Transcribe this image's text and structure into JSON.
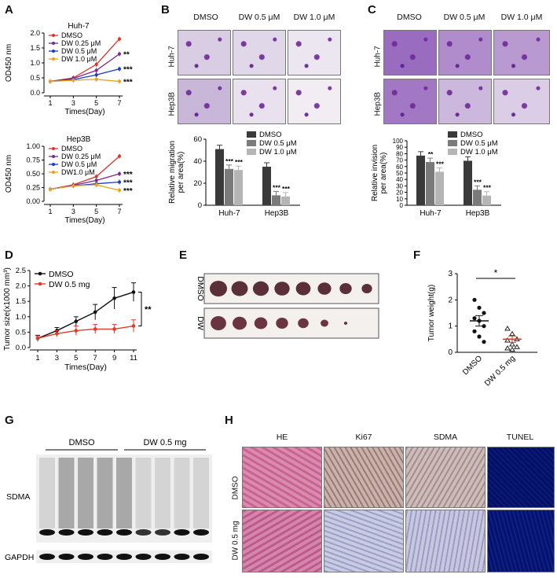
{
  "panels": {
    "A": {
      "label": "A",
      "top": {
        "title": "Huh-7",
        "ylabel": "OD450 nm",
        "xlabel": "Times(Day)"
      },
      "bottom": {
        "title": "Hep3B",
        "ylabel": "OD450 nm",
        "xlabel": "Times(Day)"
      }
    },
    "B": {
      "label": "B",
      "columns": [
        "DMSO",
        "DW 0.5 μM",
        "DW 1.0 μM"
      ],
      "rows": [
        "Huh-7",
        "Hep3B"
      ],
      "ylabel": "Relative migration per area(%)"
    },
    "C": {
      "label": "C",
      "columns": [
        "DMSO",
        "DW 0.5 μM",
        "DW 1.0 μM"
      ],
      "rows": [
        "Huh-7",
        "Hep3B"
      ],
      "ylabel": "Relative invision per area(%)"
    },
    "D": {
      "label": "D",
      "ylabel": "Tumor size(x1000 mm³)",
      "xlabel": "Times(Day)",
      "sig": "**"
    },
    "E": {
      "label": "E",
      "rows": [
        "DMSO",
        "DW"
      ],
      "tumor_sizes": {
        "DMSO": [
          1.0,
          0.95,
          0.92,
          0.88,
          0.85,
          0.78,
          0.7,
          0.6
        ],
        "DW": [
          0.9,
          0.82,
          0.75,
          0.7,
          0.62,
          0.45,
          0.2
        ]
      }
    },
    "F": {
      "label": "F",
      "ylabel": "Tumor weight(g)",
      "categories": [
        "DMSO",
        "DW 0.5 mg"
      ],
      "sig": "*"
    },
    "G": {
      "label": "G",
      "groups": [
        "DMSO",
        "DW 0.5 mg"
      ],
      "rows": [
        "SDMA",
        "GAPDH"
      ]
    },
    "H": {
      "label": "H",
      "columns": [
        "HE",
        "Ki67",
        "SDMA",
        "TUNEL"
      ],
      "rows": [
        "DMSO",
        "DW 0.5 mg"
      ]
    }
  },
  "chart_data": [
    {
      "type": "line",
      "id": "A-top",
      "title": "Huh-7",
      "x": [
        1,
        3,
        5,
        7
      ],
      "xlabel": "Times(Day)",
      "ylabel": "OD450 nm",
      "ylim": [
        0,
        2.0
      ],
      "yticks": [
        "0.0",
        "0.5",
        "1.0",
        "1.5",
        "2.0"
      ],
      "series": [
        {
          "name": "DMSO",
          "color": "#d9342b",
          "values": [
            0.38,
            0.5,
            0.95,
            1.8
          ],
          "sig": ""
        },
        {
          "name": "DW 0.25 μM",
          "color": "#7a2a8c",
          "values": [
            0.38,
            0.48,
            0.75,
            1.3
          ],
          "sig": "**"
        },
        {
          "name": "DW 0.5 μM",
          "color": "#1f3bbf",
          "values": [
            0.38,
            0.44,
            0.6,
            0.8
          ],
          "sig": "***"
        },
        {
          "name": "DW 1.0 μM",
          "color": "#e8a317",
          "values": [
            0.38,
            0.42,
            0.45,
            0.38
          ],
          "sig": "***"
        }
      ]
    },
    {
      "type": "line",
      "id": "A-bottom",
      "title": "Hep3B",
      "x": [
        1,
        3,
        5,
        7
      ],
      "xlabel": "Times(Day)",
      "ylabel": "OD450 nm",
      "ylim": [
        0,
        1.0
      ],
      "yticks": [
        "0.00",
        "0.25",
        "0.50",
        "0.75",
        "1.00"
      ],
      "series": [
        {
          "name": "DMSO",
          "color": "#d9342b",
          "values": [
            0.22,
            0.3,
            0.45,
            0.82
          ],
          "sig": ""
        },
        {
          "name": "DW 0.25 μM",
          "color": "#7a2a8c",
          "values": [
            0.22,
            0.29,
            0.38,
            0.5
          ],
          "sig": "***"
        },
        {
          "name": "DW 0.5 μM",
          "color": "#1f3bbf",
          "values": [
            0.22,
            0.28,
            0.32,
            0.35
          ],
          "sig": "***"
        },
        {
          "name": "DW1.0 μM",
          "color": "#e8a317",
          "values": [
            0.22,
            0.28,
            0.3,
            0.2
          ],
          "sig": "***"
        }
      ]
    },
    {
      "type": "bar",
      "id": "B-bar",
      "categories": [
        "Huh-7",
        "Hep3B"
      ],
      "ylabel": "Relative migration per area(%)",
      "ylim": [
        0,
        60
      ],
      "yticks": [
        "0",
        "20",
        "40",
        "60"
      ],
      "series": [
        {
          "name": "DMSO",
          "color": "#3a3a3a",
          "values": [
            51,
            35
          ],
          "sig": [
            "",
            ""
          ]
        },
        {
          "name": "DW 0.5 μM",
          "color": "#7a7a7a",
          "values": [
            33,
            9
          ],
          "sig": [
            "***",
            "***"
          ]
        },
        {
          "name": "DW 1.0 μM",
          "color": "#b5b5b5",
          "values": [
            32,
            8
          ],
          "sig": [
            "***",
            "***"
          ]
        }
      ]
    },
    {
      "type": "bar",
      "id": "C-bar",
      "categories": [
        "Huh-7",
        "Hep3B"
      ],
      "ylabel": "Relative invision per area(%)",
      "ylim": [
        0,
        100
      ],
      "yticks": [
        "0",
        "10",
        "20",
        "30",
        "40",
        "50",
        "60",
        "70",
        "80",
        "90",
        "100"
      ],
      "series": [
        {
          "name": "DMSO",
          "color": "#3a3a3a",
          "values": [
            77,
            69
          ],
          "sig": [
            "",
            ""
          ]
        },
        {
          "name": "DW 0.5 μM",
          "color": "#7a7a7a",
          "values": [
            67,
            24
          ],
          "sig": [
            "**",
            "***"
          ]
        },
        {
          "name": "DW 1.0 μM",
          "color": "#b5b5b5",
          "values": [
            52,
            15
          ],
          "sig": [
            "***",
            "***"
          ]
        }
      ]
    },
    {
      "type": "line",
      "id": "D-line",
      "x": [
        1,
        3,
        5,
        7,
        9,
        11
      ],
      "xlabel": "Times(Day)",
      "ylabel": "Tumor size(x1000 mm³)",
      "ylim": [
        0,
        2.5
      ],
      "yticks": [
        "0.0",
        "0.5",
        "1.0",
        "1.5",
        "2.0",
        "2.5"
      ],
      "series": [
        {
          "name": "DMSO",
          "color": "#111111",
          "values": [
            0.3,
            0.55,
            0.85,
            1.15,
            1.6,
            1.8
          ],
          "err": [
            0.1,
            0.1,
            0.15,
            0.25,
            0.35,
            0.3
          ]
        },
        {
          "name": "DW 0.5 mg",
          "color": "#e03b2a",
          "values": [
            0.3,
            0.45,
            0.55,
            0.6,
            0.6,
            0.7
          ],
          "err": [
            0.08,
            0.1,
            0.15,
            0.15,
            0.15,
            0.2
          ]
        }
      ]
    },
    {
      "type": "scatter",
      "id": "F-scatter",
      "categories": [
        "DMSO",
        "DW 0.5 mg"
      ],
      "ylabel": "Tumor weight(g)",
      "ylim": [
        0,
        3
      ],
      "yticks": [
        "0",
        "1",
        "2",
        "3"
      ],
      "series": [
        {
          "name": "DMSO",
          "color": "#111111",
          "values": [
            2.0,
            1.7,
            1.5,
            1.3,
            1.2,
            1.0,
            0.8,
            0.6,
            0.4
          ],
          "mean": 1.2,
          "sem": 0.2
        },
        {
          "name": "DW 0.5 mg",
          "color": "#e03b2a",
          "values": [
            0.9,
            0.7,
            0.5,
            0.45,
            0.3,
            0.2,
            0.15,
            0.1
          ],
          "mean": 0.5,
          "sem": 0.12
        }
      ]
    }
  ]
}
